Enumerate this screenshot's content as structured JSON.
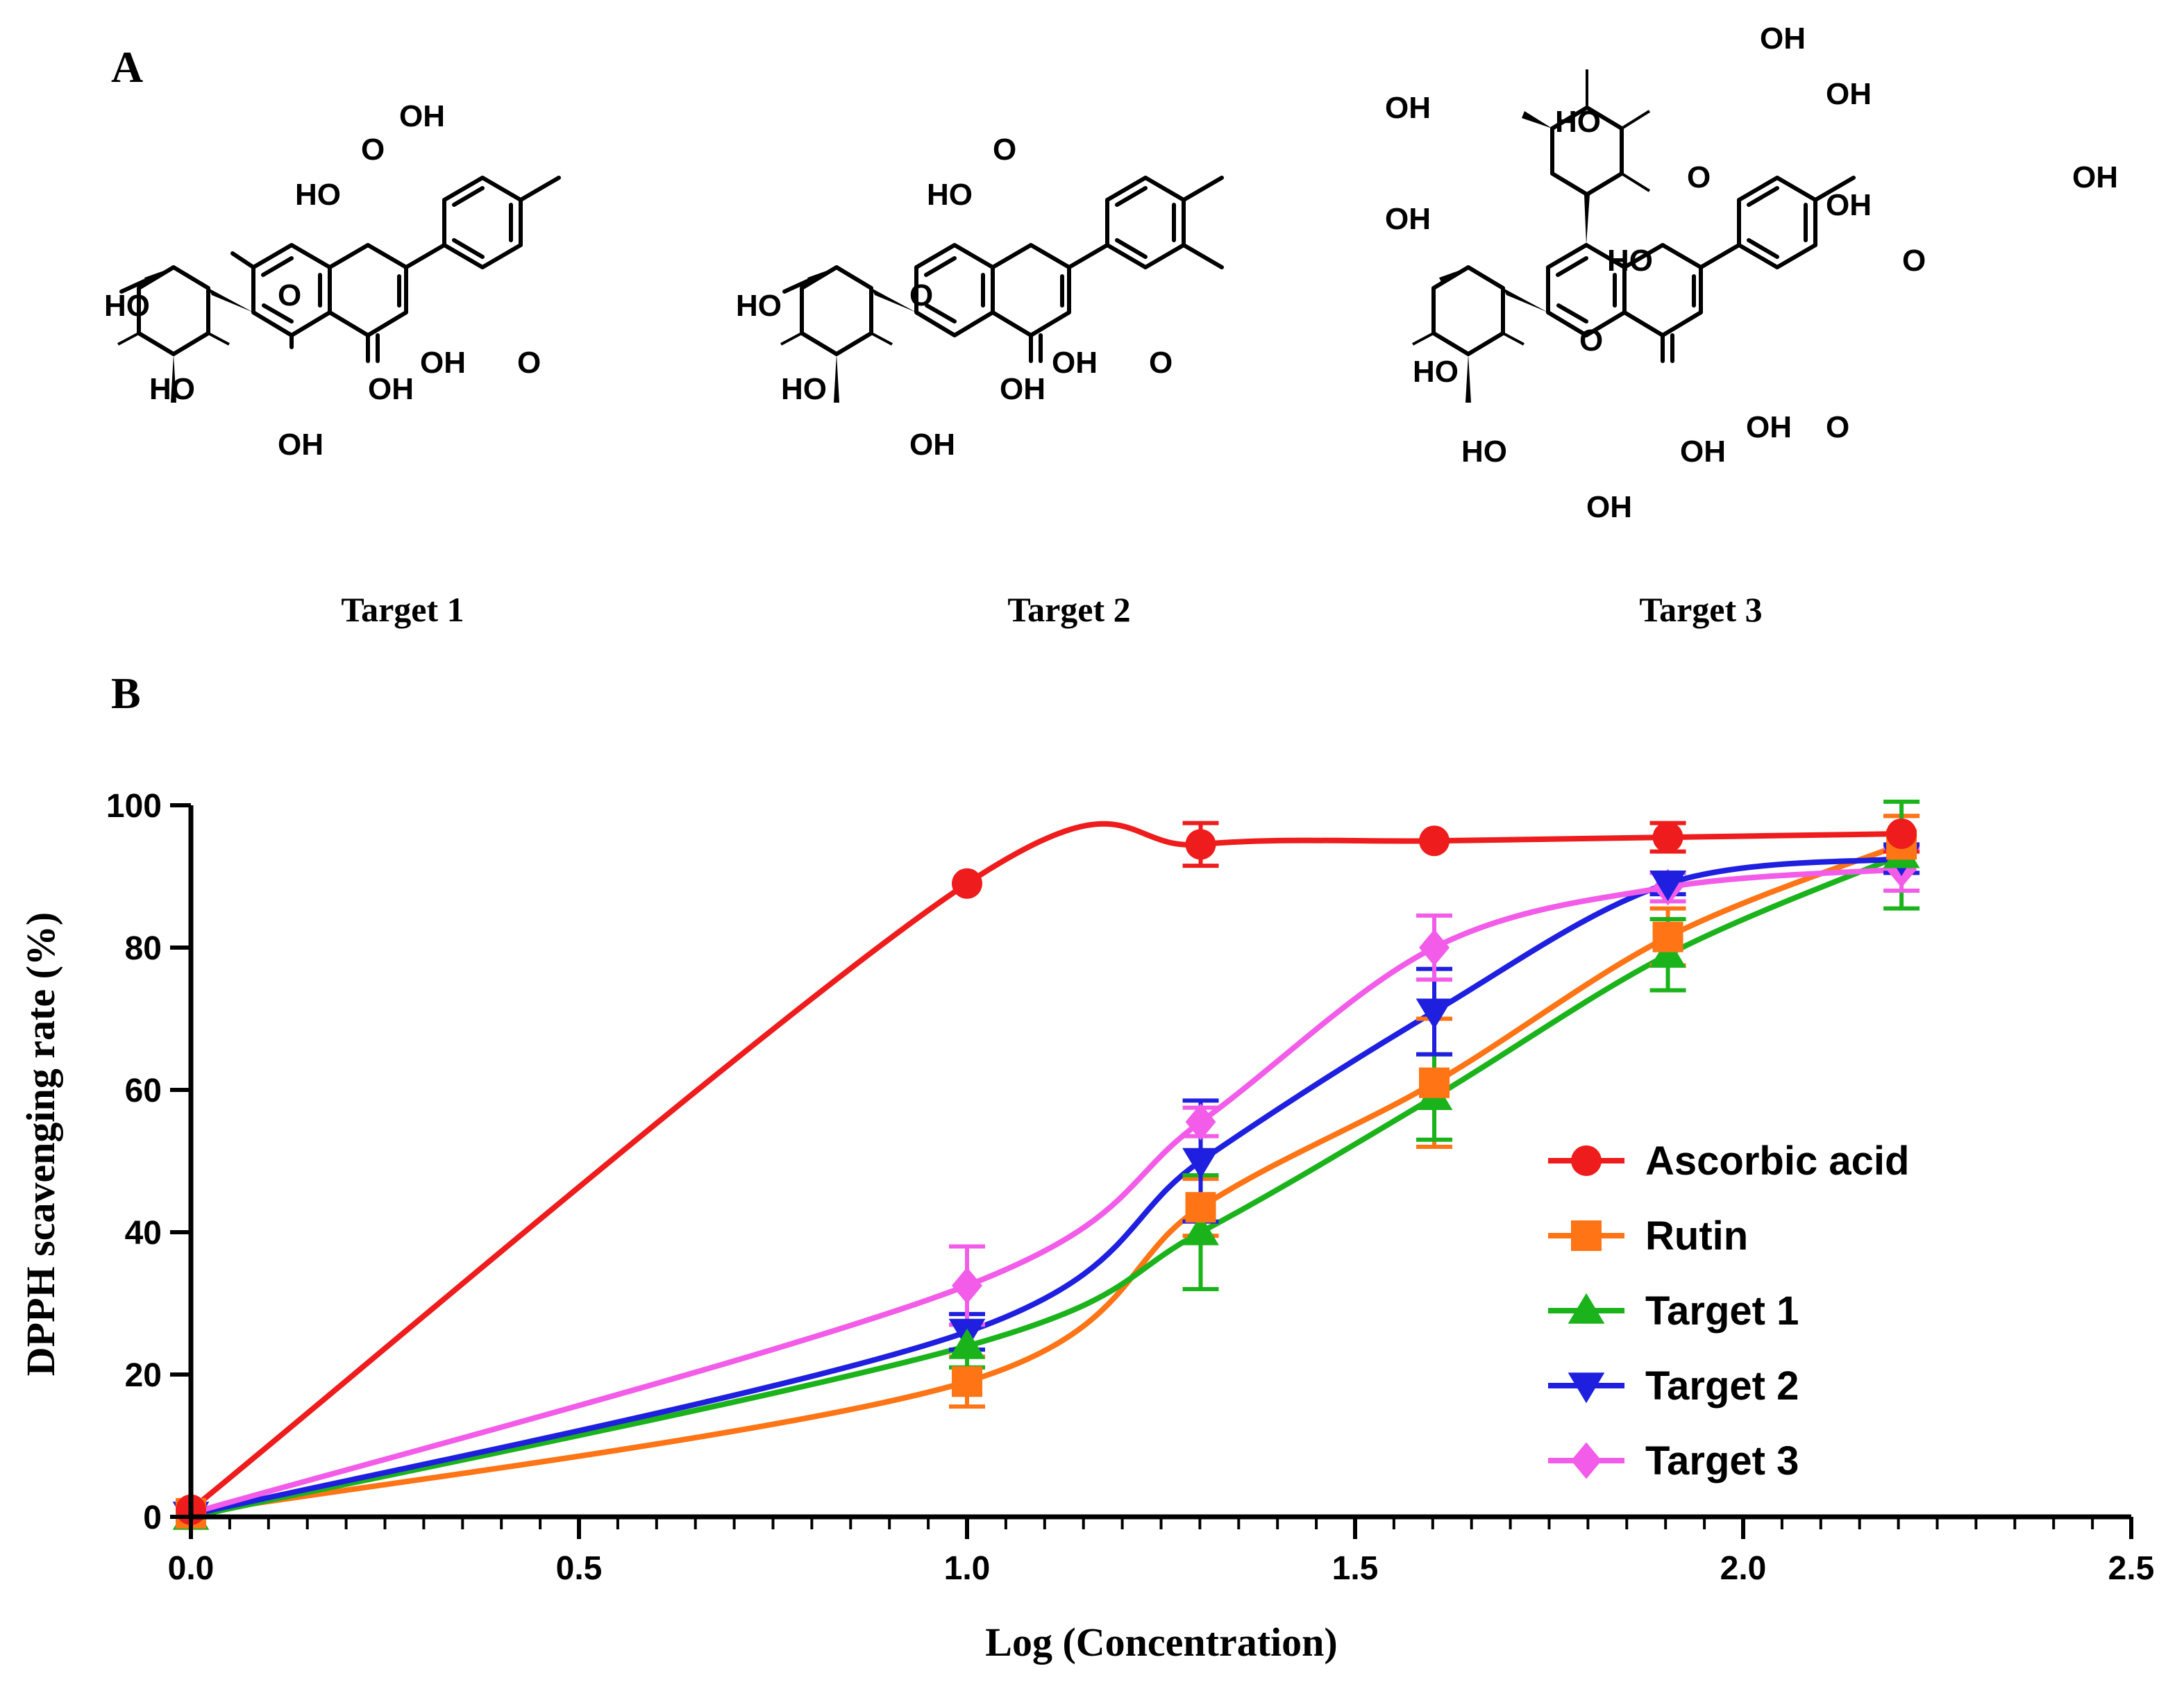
{
  "panels": {
    "a": "A",
    "b": "B"
  },
  "molecules": [
    {
      "label": "Target 1"
    },
    {
      "label": "Target 2"
    },
    {
      "label": "Target 3"
    }
  ],
  "atoms": {
    "oh": "OH",
    "ho": "HO",
    "o": "O"
  },
  "chart_data": {
    "type": "line",
    "title": "",
    "xlabel": "Log (Concentration)",
    "ylabel": "DPPH scavenging rate (%)",
    "xlim": [
      0,
      2.5
    ],
    "ylim": [
      0,
      100
    ],
    "x_ticks": [
      "0.0",
      "0.5",
      "1.0",
      "1.5",
      "2.0",
      "2.5"
    ],
    "y_ticks": [
      "0",
      "20",
      "40",
      "60",
      "80",
      "100"
    ],
    "grid": false,
    "legend_position": "center-right",
    "x": [
      0,
      1.0,
      1.301,
      1.602,
      1.903,
      2.204
    ],
    "series": [
      {
        "name": "Ascorbic acid",
        "marker": "circle",
        "color": "#ee1c1c",
        "values": [
          1,
          89,
          94.5,
          95,
          95.5,
          96
        ],
        "errors": [
          0.5,
          0.5,
          3,
          0.5,
          2,
          2.5
        ]
      },
      {
        "name": "Rutin",
        "marker": "square",
        "color": "#ff7415",
        "values": [
          0.5,
          19,
          43.5,
          61,
          81.5,
          94.5
        ],
        "errors": [
          0.5,
          3.5,
          4,
          9,
          4,
          4
        ]
      },
      {
        "name": "Target 1",
        "marker": "triangle-up",
        "color": "#1bb31b",
        "values": [
          0,
          24,
          40,
          59,
          79,
          93
        ],
        "errors": [
          0.5,
          3,
          8,
          6,
          5,
          7.5
        ]
      },
      {
        "name": "Target 2",
        "marker": "triangle-down",
        "color": "#1f1fe0",
        "values": [
          0.3,
          26,
          50,
          71,
          89,
          92.5
        ],
        "errors": [
          0.5,
          2.5,
          8.5,
          6,
          1.5,
          2
        ]
      },
      {
        "name": "Target 3",
        "marker": "diamond",
        "color": "#f25ce8",
        "values": [
          0.5,
          32.5,
          55.5,
          80,
          88.5,
          91
        ],
        "errors": [
          0.5,
          5.5,
          2,
          4.5,
          2,
          3
        ]
      }
    ]
  }
}
